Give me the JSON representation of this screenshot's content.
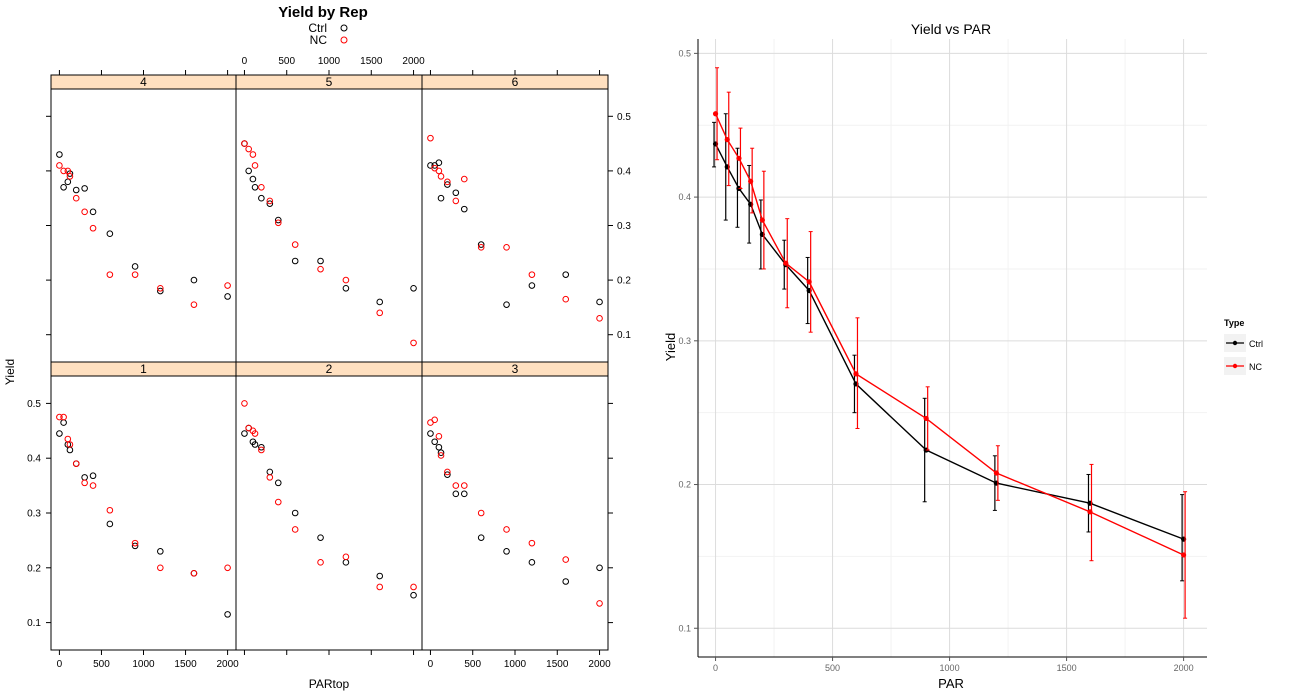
{
  "chart_data": [
    {
      "type": "scatter",
      "title": "Yield by Rep",
      "xlabel": "PARtop",
      "ylabel": "Yield",
      "xlim": [
        -100,
        2100
      ],
      "ylim": [
        0.05,
        0.55
      ],
      "x_ticks": [
        0,
        500,
        1000,
        1500,
        2000
      ],
      "y_ticks": [
        0.1,
        0.2,
        0.3,
        0.4,
        0.5
      ],
      "legend": {
        "placement": "top",
        "entries": [
          {
            "name": "Ctrl",
            "color": "#000000"
          },
          {
            "name": "NC",
            "color": "#ff0000"
          }
        ]
      },
      "panels": [
        {
          "label": "4",
          "series": [
            {
              "name": "Ctrl",
              "x": [
                0,
                50,
                100,
                125,
                200,
                300,
                400,
                600,
                900,
                1200,
                1600,
                2000
              ],
              "y": [
                0.43,
                0.37,
                0.38,
                0.395,
                0.365,
                0.368,
                0.325,
                0.285,
                0.225,
                0.18,
                0.2,
                0.17
              ]
            },
            {
              "name": "NC",
              "x": [
                0,
                50,
                100,
                125,
                200,
                300,
                400,
                600,
                900,
                1200,
                1600,
                2000
              ],
              "y": [
                0.41,
                0.4,
                0.4,
                0.39,
                0.35,
                0.325,
                0.295,
                0.21,
                0.21,
                0.185,
                0.155,
                0.19
              ]
            }
          ]
        },
        {
          "label": "5",
          "series": [
            {
              "name": "Ctrl",
              "x": [
                0,
                50,
                100,
                125,
                200,
                300,
                400,
                600,
                900,
                1200,
                1600,
                2000
              ],
              "y": [
                0.45,
                0.4,
                0.385,
                0.37,
                0.35,
                0.34,
                0.31,
                0.235,
                0.235,
                0.185,
                0.16,
                0.185
              ]
            },
            {
              "name": "NC",
              "x": [
                0,
                50,
                100,
                125,
                200,
                300,
                400,
                600,
                900,
                1200,
                1600,
                2000
              ],
              "y": [
                0.45,
                0.44,
                0.43,
                0.41,
                0.37,
                0.345,
                0.305,
                0.265,
                0.22,
                0.2,
                0.14,
                0.085
              ]
            }
          ]
        },
        {
          "label": "6",
          "series": [
            {
              "name": "Ctrl",
              "x": [
                0,
                50,
                100,
                125,
                200,
                300,
                400,
                600,
                900,
                1200,
                1600,
                2000
              ],
              "y": [
                0.41,
                0.41,
                0.415,
                0.35,
                0.375,
                0.36,
                0.33,
                0.265,
                0.155,
                0.19,
                0.21,
                0.16
              ]
            },
            {
              "name": "NC",
              "x": [
                0,
                50,
                100,
                125,
                200,
                300,
                400,
                600,
                900,
                1200,
                1600,
                2000
              ],
              "y": [
                0.46,
                0.405,
                0.4,
                0.39,
                0.38,
                0.345,
                0.385,
                0.26,
                0.26,
                0.21,
                0.165,
                0.13
              ]
            }
          ]
        },
        {
          "label": "1",
          "series": [
            {
              "name": "Ctrl",
              "x": [
                0,
                50,
                100,
                125,
                200,
                300,
                400,
                600,
                900,
                1200,
                1600,
                2000
              ],
              "y": [
                0.445,
                0.465,
                0.425,
                0.415,
                0.39,
                0.365,
                0.368,
                0.28,
                0.24,
                0.23,
                0.19,
                0.115
              ]
            },
            {
              "name": "NC",
              "x": [
                0,
                50,
                100,
                125,
                200,
                300,
                400,
                600,
                900,
                1200,
                1600,
                2000
              ],
              "y": [
                0.475,
                0.475,
                0.435,
                0.425,
                0.39,
                0.355,
                0.35,
                0.305,
                0.245,
                0.2,
                0.19,
                0.2
              ]
            }
          ]
        },
        {
          "label": "2",
          "series": [
            {
              "name": "Ctrl",
              "x": [
                0,
                50,
                100,
                125,
                200,
                300,
                400,
                600,
                900,
                1200,
                1600,
                2000
              ],
              "y": [
                0.445,
                0.455,
                0.43,
                0.425,
                0.42,
                0.375,
                0.355,
                0.3,
                0.255,
                0.21,
                0.185,
                0.15
              ]
            },
            {
              "name": "NC",
              "x": [
                0,
                50,
                100,
                125,
                200,
                300,
                400,
                600,
                900,
                1200,
                1600,
                2000
              ],
              "y": [
                0.5,
                0.455,
                0.45,
                0.445,
                0.415,
                0.365,
                0.32,
                0.27,
                0.21,
                0.22,
                0.165,
                0.165
              ]
            }
          ]
        },
        {
          "label": "3",
          "series": [
            {
              "name": "Ctrl",
              "x": [
                0,
                50,
                100,
                125,
                200,
                300,
                400,
                600,
                900,
                1200,
                1600,
                2000
              ],
              "y": [
                0.445,
                0.43,
                0.42,
                0.41,
                0.37,
                0.335,
                0.335,
                0.255,
                0.23,
                0.21,
                0.175,
                0.2
              ]
            },
            {
              "name": "NC",
              "x": [
                0,
                50,
                100,
                125,
                200,
                300,
                400,
                600,
                900,
                1200,
                1600,
                2000
              ],
              "y": [
                0.465,
                0.47,
                0.44,
                0.405,
                0.375,
                0.35,
                0.35,
                0.3,
                0.27,
                0.245,
                0.215,
                0.135
              ]
            }
          ]
        }
      ]
    },
    {
      "type": "line",
      "title": "Yield vs PAR",
      "xlabel": "PAR",
      "ylabel": "Yield",
      "xlim": [
        -75,
        2100
      ],
      "ylim": [
        0.08,
        0.51
      ],
      "x_ticks": [
        0,
        500,
        1000,
        1500,
        2000
      ],
      "y_ticks": [
        0.1,
        0.2,
        0.3,
        0.4,
        0.5
      ],
      "grid": true,
      "legend": {
        "placement": "right",
        "title": "Type"
      },
      "x": [
        0,
        50,
        100,
        150,
        200,
        300,
        400,
        600,
        900,
        1200,
        1600,
        2000
      ],
      "series": [
        {
          "name": "Ctrl",
          "color": "#000000",
          "values": [
            0.437,
            0.421,
            0.406,
            0.395,
            0.374,
            0.353,
            0.335,
            0.27,
            0.224,
            0.201,
            0.187,
            0.162
          ],
          "err_low": [
            0.421,
            0.384,
            0.379,
            0.368,
            0.35,
            0.336,
            0.312,
            0.25,
            0.188,
            0.182,
            0.167,
            0.133
          ],
          "err_high": [
            0.452,
            0.458,
            0.434,
            0.422,
            0.398,
            0.37,
            0.358,
            0.29,
            0.26,
            0.22,
            0.207,
            0.193
          ]
        },
        {
          "name": "NC",
          "color": "#ff0000",
          "values": [
            0.458,
            0.44,
            0.427,
            0.411,
            0.384,
            0.354,
            0.341,
            0.277,
            0.246,
            0.208,
            0.181,
            0.151
          ],
          "err_low": [
            0.426,
            0.408,
            0.406,
            0.389,
            0.35,
            0.323,
            0.306,
            0.239,
            0.224,
            0.189,
            0.147,
            0.107
          ],
          "err_high": [
            0.49,
            0.473,
            0.448,
            0.434,
            0.418,
            0.385,
            0.376,
            0.316,
            0.268,
            0.227,
            0.214,
            0.195
          ]
        }
      ]
    }
  ]
}
